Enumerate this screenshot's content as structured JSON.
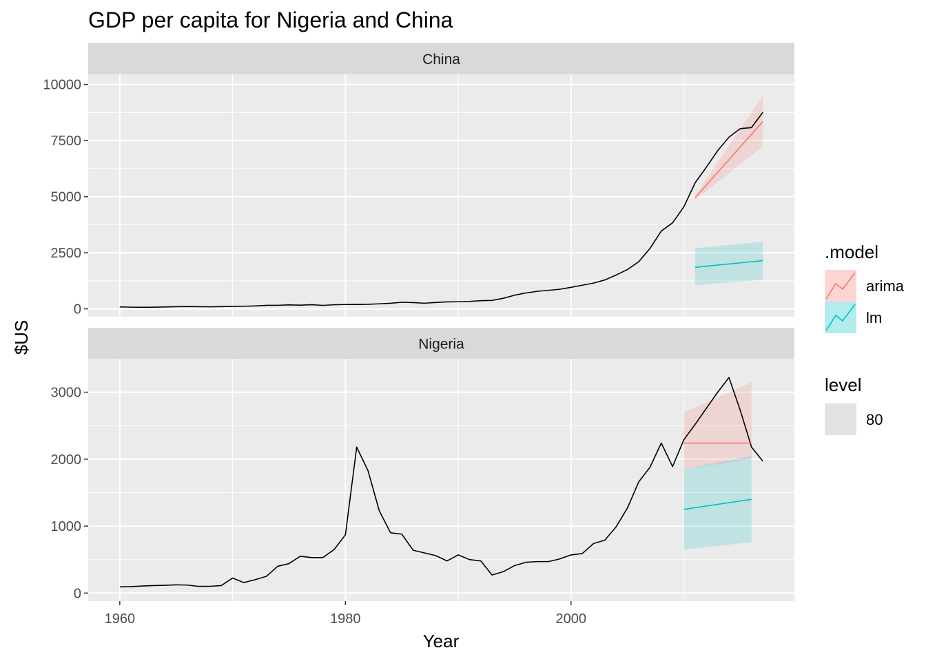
{
  "chart_data": {
    "type": "line",
    "title": "GDP per capita for Nigeria and China",
    "xlabel": "Year",
    "ylabel": "$US",
    "x_ticks": [
      1960,
      1980,
      2000
    ],
    "xlim": [
      1957.2,
      2019.8
    ],
    "grid": true,
    "legend_position": "right",
    "legend": {
      "model_title": ".model",
      "model_entries": [
        {
          "label": "arima",
          "color": "#F8766D"
        },
        {
          "label": "lm",
          "color": "#00BFC4"
        }
      ],
      "level_title": "level",
      "level_entries": [
        {
          "label": "80"
        }
      ]
    },
    "panels": [
      {
        "name": "China",
        "ylim": [
          -350,
          10450
        ],
        "y_ticks": [
          0,
          2500,
          5000,
          7500,
          10000
        ],
        "y_tick_labels": [
          "0",
          "2500",
          "5000",
          "7500",
          "10000"
        ],
        "actual": {
          "x": [
            1960,
            1961,
            1962,
            1963,
            1964,
            1965,
            1966,
            1967,
            1968,
            1969,
            1970,
            1971,
            1972,
            1973,
            1974,
            1975,
            1976,
            1977,
            1978,
            1979,
            1980,
            1981,
            1982,
            1983,
            1984,
            1985,
            1986,
            1987,
            1988,
            1989,
            1990,
            1991,
            1992,
            1993,
            1994,
            1995,
            1996,
            1997,
            1998,
            1999,
            2000,
            2001,
            2002,
            2003,
            2004,
            2005,
            2006,
            2007,
            2008,
            2009,
            2010,
            2011,
            2012,
            2013,
            2014,
            2015,
            2016,
            2017
          ],
          "y": [
            90,
            76,
            70,
            74,
            85,
            98,
            104,
            97,
            91,
            100,
            112,
            118,
            131,
            157,
            160,
            178,
            165,
            185,
            156,
            183,
            195,
            197,
            203,
            225,
            250,
            294,
            281,
            252,
            284,
            311,
            317,
            333,
            366,
            377,
            473,
            610,
            709,
            781,
            828,
            873,
            959,
            1053,
            1149,
            1289,
            1509,
            1753,
            2099,
            2694,
            3468,
            3832,
            4550,
            5618,
            6317,
            7051,
            7651,
            8033,
            8079,
            8759
          ]
        },
        "forecasts": [
          {
            "model": "arima",
            "x": [
              2011,
              2017
            ],
            "mean": [
              4950,
              8350
            ],
            "lower": [
              4850,
              7250
            ],
            "upper": [
              5050,
              9500
            ]
          },
          {
            "model": "lm",
            "x": [
              2011,
              2017
            ],
            "mean": [
              1850,
              2150
            ],
            "lower": [
              1050,
              1300
            ],
            "upper": [
              2700,
              3000
            ]
          }
        ]
      },
      {
        "name": "Nigeria",
        "ylim": [
          -120,
          3500
        ],
        "y_ticks": [
          0,
          1000,
          2000,
          3000
        ],
        "y_tick_labels": [
          "0",
          "1000",
          "2000",
          "3000"
        ],
        "actual": {
          "x": [
            1960,
            1961,
            1962,
            1963,
            1964,
            1965,
            1966,
            1967,
            1968,
            1969,
            1970,
            1971,
            1972,
            1973,
            1974,
            1975,
            1976,
            1977,
            1978,
            1979,
            1980,
            1981,
            1982,
            1983,
            1984,
            1985,
            1986,
            1987,
            1988,
            1989,
            1990,
            1991,
            1992,
            1993,
            1994,
            1995,
            1996,
            1997,
            1998,
            1999,
            2000,
            2001,
            2002,
            2003,
            2004,
            2005,
            2006,
            2007,
            2008,
            2009,
            2010,
            2011,
            2012,
            2013,
            2014,
            2015,
            2016,
            2017
          ],
          "y": [
            93,
            97,
            106,
            112,
            116,
            123,
            119,
            100,
            101,
            112,
            224,
            157,
            200,
            250,
            400,
            440,
            550,
            530,
            530,
            650,
            870,
            2180,
            1830,
            1230,
            900,
            880,
            640,
            600,
            560,
            480,
            570,
            500,
            480,
            270,
            320,
            410,
            460,
            470,
            470,
            510,
            570,
            590,
            740,
            790,
            990,
            1270,
            1660,
            1880,
            2240,
            1890,
            2290,
            2520,
            2760,
            3000,
            3220,
            2730,
            2180,
            1970
          ]
        },
        "forecasts": [
          {
            "model": "arima",
            "x": [
              2010,
              2016
            ],
            "mean": [
              2240,
              2240
            ],
            "lower": [
              1850,
              2000
            ],
            "upper": [
              2700,
              3150
            ]
          },
          {
            "model": "lm",
            "x": [
              2010,
              2016
            ],
            "mean": [
              1250,
              1400
            ],
            "lower": [
              650,
              760
            ],
            "upper": [
              1850,
              2050
            ]
          }
        ]
      }
    ]
  }
}
